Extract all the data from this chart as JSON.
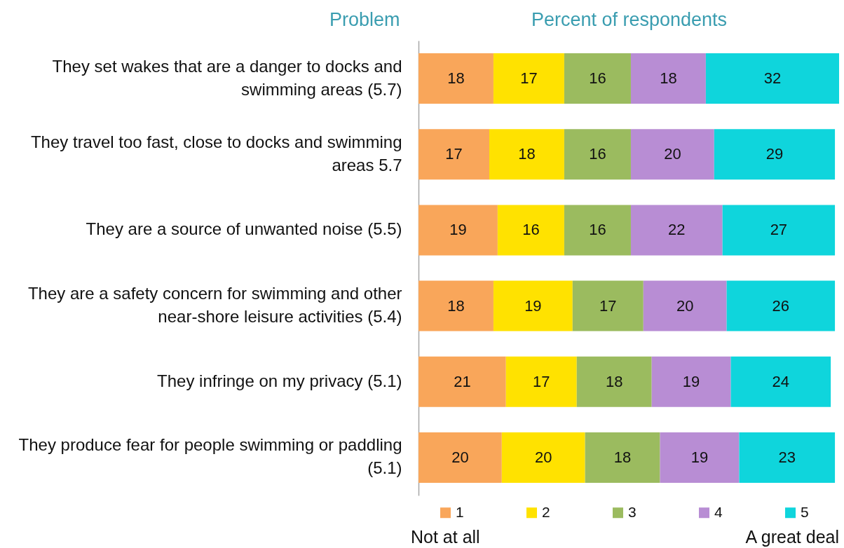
{
  "chart_data": {
    "type": "bar",
    "orientation": "horizontal",
    "stacked": true,
    "xlabel": "Percent of respondents",
    "ylabel": "Problem",
    "categories": [
      "They set wakes that are a danger to docks and swimming areas (5.7)",
      "They travel too fast, close to docks and swimming areas 5.7",
      "They are a source of unwanted noise (5.5)",
      "They are a safety concern for swimming and other near-shore leisure activities (5.4)",
      "They infringe on my privacy (5.1)",
      "They produce fear for people swimming or paddling (5.1)"
    ],
    "series": [
      {
        "name": "1",
        "color": "#f9a65a",
        "values": [
          18,
          17,
          19,
          18,
          21,
          20
        ]
      },
      {
        "name": "2",
        "color": "#ffe200",
        "values": [
          17,
          18,
          16,
          19,
          17,
          20
        ]
      },
      {
        "name": "3",
        "color": "#9bbb5f",
        "values": [
          16,
          16,
          16,
          17,
          18,
          18
        ]
      },
      {
        "name": "4",
        "color": "#b88dd4",
        "values": [
          18,
          20,
          22,
          20,
          19,
          19
        ]
      },
      {
        "name": "5",
        "color": "#0fd5dc",
        "values": [
          32,
          29,
          27,
          26,
          24,
          23
        ]
      }
    ],
    "data_labels": true,
    "legend": "bottom",
    "tick_labels": "y",
    "annotations": [
      "Not at all",
      "A great deal"
    ]
  }
}
